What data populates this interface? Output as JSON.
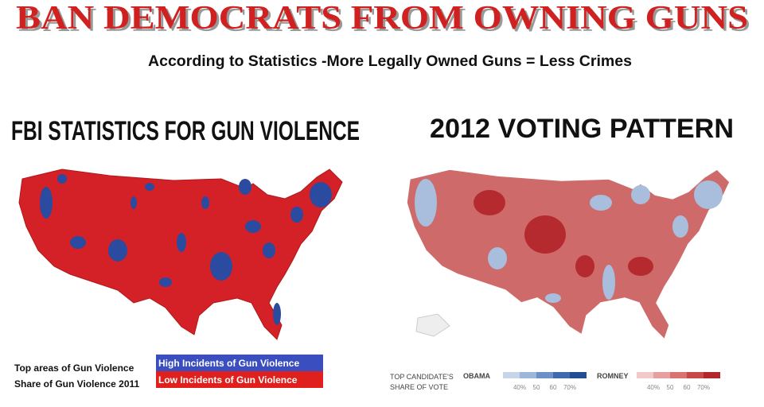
{
  "header": {
    "title": "BAN DEMOCRATS FROM OWNING GUNS",
    "subtitle": "According to Statistics -More Legally Owned Guns = Less Crimes"
  },
  "left_panel": {
    "heading": "FBI STATISTICS FOR GUN VIOLENCE",
    "legend": {
      "line1": "Top areas of Gun Violence",
      "line2": "Share of Gun Violence 2011",
      "high": "High Incidents of Gun Violence",
      "low": "Low Incidents of Gun Violence"
    }
  },
  "right_panel": {
    "heading": "2012 VOTING PATTERN",
    "legend": {
      "line1": "TOP CANDIDATE'S",
      "line2": "SHARE OF VOTE",
      "obama": {
        "name": "OBAMA",
        "ticks": [
          "40%",
          "50",
          "60",
          "70%"
        ]
      },
      "romney": {
        "name": "ROMNEY",
        "ticks": [
          "40%",
          "50",
          "60",
          "70%"
        ]
      }
    }
  }
}
